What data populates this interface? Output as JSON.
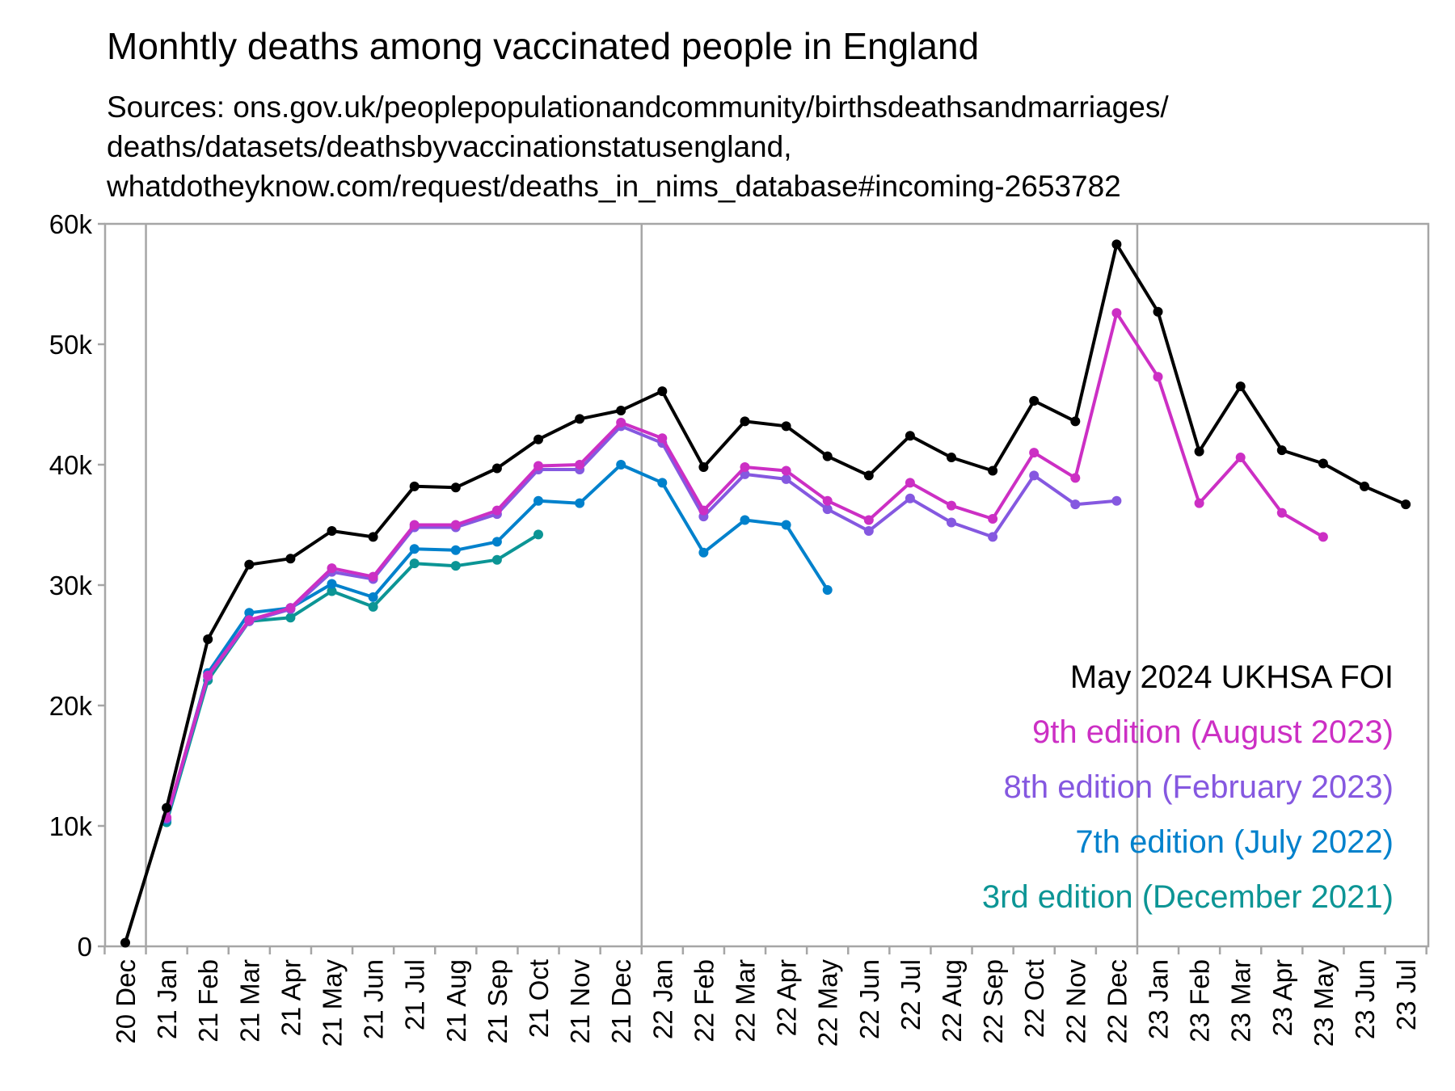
{
  "title": "Monhtly deaths among vaccinated people in England",
  "subtitle": [
    "Sources: ons.gov.uk/peoplepopulationandcommunity/birthsdeathsandmarriages/",
    "deaths/datasets/deathsbyvaccinationstatusengland,",
    "whatdotheyknow.com/request/deaths_in_nims_database#incoming-2653782"
  ],
  "chart_data": {
    "type": "line",
    "x": [
      "20 Dec",
      "21 Jan",
      "21 Feb",
      "21 Mar",
      "21 Apr",
      "21 May",
      "21 Jun",
      "21 Jul",
      "21 Aug",
      "21 Sep",
      "21 Oct",
      "21 Nov",
      "21 Dec",
      "22 Jan",
      "22 Feb",
      "22 Mar",
      "22 Apr",
      "22 May",
      "22 Jun",
      "22 Jul",
      "22 Aug",
      "22 Sep",
      "22 Oct",
      "22 Nov",
      "22 Dec",
      "23 Jan",
      "23 Feb",
      "23 Mar",
      "23 Apr",
      "23 May",
      "23 Jun",
      "23 Jul"
    ],
    "ylim": [
      0,
      60000
    ],
    "yticks": [
      0,
      10000,
      20000,
      30000,
      40000,
      50000,
      60000
    ],
    "ytick_labels": [
      "0",
      "10k",
      "20k",
      "30k",
      "40k",
      "50k",
      "60k"
    ],
    "year_boundaries_after": [
      "20 Dec",
      "21 Dec",
      "22 Dec"
    ],
    "legend_position": "bottom-right",
    "grid": false,
    "series": [
      {
        "name": "May 2024 UKHSA FOI",
        "color": "#000000",
        "values": [
          300,
          11500,
          25500,
          31700,
          32200,
          34500,
          34000,
          38200,
          38100,
          39700,
          42100,
          43800,
          44500,
          46100,
          39800,
          43600,
          43200,
          40700,
          39100,
          42400,
          40600,
          39500,
          45300,
          43600,
          58300,
          52700,
          41100,
          46500,
          41200,
          40100,
          38200,
          36700
        ]
      },
      {
        "name": "9th edition (August 2023)",
        "color": "#cc2fc4",
        "values": [
          null,
          10700,
          22500,
          27100,
          28100,
          31400,
          30700,
          35000,
          35000,
          36200,
          39900,
          40000,
          43500,
          42200,
          36200,
          39800,
          39500,
          37000,
          35400,
          38500,
          36600,
          35500,
          41000,
          38900,
          52600,
          47300,
          36800,
          40600,
          36000,
          34000,
          null,
          null
        ]
      },
      {
        "name": "8th edition (February 2023)",
        "color": "#8558e0",
        "values": [
          null,
          10600,
          22400,
          27000,
          28000,
          31100,
          30500,
          34800,
          34800,
          35900,
          39600,
          39600,
          43200,
          41800,
          35700,
          39200,
          38800,
          36300,
          34500,
          37200,
          35200,
          34000,
          39100,
          36700,
          37000,
          null,
          null,
          null,
          null,
          null,
          null,
          null
        ]
      },
      {
        "name": "7th edition (July 2022)",
        "color": "#0081cc",
        "values": [
          null,
          10500,
          22700,
          27700,
          28100,
          30100,
          29000,
          33000,
          32900,
          33600,
          37000,
          36800,
          40000,
          38500,
          32700,
          35400,
          35000,
          29600,
          null,
          null,
          null,
          null,
          null,
          null,
          null,
          null,
          null,
          null,
          null,
          null,
          null,
          null
        ]
      },
      {
        "name": "3rd edition (December 2021)",
        "color": "#0c9595",
        "values": [
          null,
          10300,
          22100,
          27000,
          27300,
          29500,
          28200,
          31800,
          31600,
          32100,
          34200,
          null,
          null,
          null,
          null,
          null,
          null,
          null,
          null,
          null,
          null,
          null,
          null,
          null,
          null,
          null,
          null,
          null,
          null,
          null,
          null,
          null
        ]
      }
    ]
  }
}
